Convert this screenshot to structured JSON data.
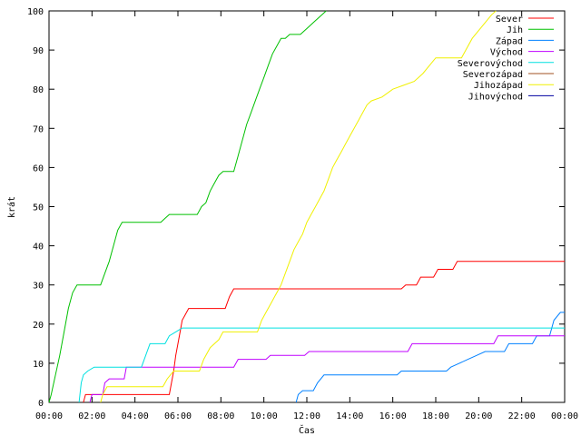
{
  "chart_data": {
    "type": "line",
    "xlabel": "Čas",
    "ylabel": "krát",
    "xlim": [
      0,
      24
    ],
    "ylim": [
      0,
      100
    ],
    "x_unit": "hours",
    "xticks": [
      {
        "value": 0,
        "label": "00:00"
      },
      {
        "value": 2,
        "label": "02:00"
      },
      {
        "value": 4,
        "label": "04:00"
      },
      {
        "value": 6,
        "label": "06:00"
      },
      {
        "value": 8,
        "label": "08:00"
      },
      {
        "value": 10,
        "label": "10:00"
      },
      {
        "value": 12,
        "label": "12:00"
      },
      {
        "value": 14,
        "label": "14:00"
      },
      {
        "value": 16,
        "label": "16:00"
      },
      {
        "value": 18,
        "label": "18:00"
      },
      {
        "value": 20,
        "label": "20:00"
      },
      {
        "value": 22,
        "label": "22:00"
      },
      {
        "value": 24,
        "label": "00:00"
      }
    ],
    "yticks": [
      0,
      10,
      20,
      30,
      40,
      50,
      60,
      70,
      80,
      90,
      100
    ],
    "grid": false,
    "legend_position": "top-right",
    "series": [
      {
        "name": "Sever",
        "color": "#ff0000",
        "points": [
          [
            1.6,
            0
          ],
          [
            1.7,
            2
          ],
          [
            5.6,
            2
          ],
          [
            5.7,
            5
          ],
          [
            5.8,
            8
          ],
          [
            5.9,
            12
          ],
          [
            6.0,
            15
          ],
          [
            6.1,
            18
          ],
          [
            6.2,
            21
          ],
          [
            6.3,
            22
          ],
          [
            6.5,
            24
          ],
          [
            8.2,
            24
          ],
          [
            8.4,
            27
          ],
          [
            8.6,
            29
          ],
          [
            16.4,
            29
          ],
          [
            16.6,
            30
          ],
          [
            17.1,
            30
          ],
          [
            17.3,
            32
          ],
          [
            17.9,
            32
          ],
          [
            18.1,
            34
          ],
          [
            18.8,
            34
          ],
          [
            19.0,
            36
          ],
          [
            24,
            36
          ]
        ]
      },
      {
        "name": "Jih",
        "color": "#00c000",
        "points": [
          [
            0,
            0
          ],
          [
            0.1,
            2
          ],
          [
            0.3,
            7
          ],
          [
            0.5,
            12
          ],
          [
            0.7,
            18
          ],
          [
            0.9,
            24
          ],
          [
            1.1,
            28
          ],
          [
            1.3,
            30
          ],
          [
            2.4,
            30
          ],
          [
            2.6,
            33
          ],
          [
            2.8,
            36
          ],
          [
            3.0,
            40
          ],
          [
            3.2,
            44
          ],
          [
            3.4,
            46
          ],
          [
            5.2,
            46
          ],
          [
            5.4,
            47
          ],
          [
            5.6,
            48
          ],
          [
            6.9,
            48
          ],
          [
            7.1,
            50
          ],
          [
            7.3,
            51
          ],
          [
            7.5,
            54
          ],
          [
            7.7,
            56
          ],
          [
            7.9,
            58
          ],
          [
            8.1,
            59
          ],
          [
            8.6,
            59
          ],
          [
            8.8,
            63
          ],
          [
            9.0,
            67
          ],
          [
            9.2,
            71
          ],
          [
            9.4,
            74
          ],
          [
            9.6,
            77
          ],
          [
            9.8,
            80
          ],
          [
            10.0,
            83
          ],
          [
            10.2,
            86
          ],
          [
            10.4,
            89
          ],
          [
            10.6,
            91
          ],
          [
            10.8,
            93
          ],
          [
            11.0,
            93
          ],
          [
            11.2,
            94
          ],
          [
            11.7,
            94
          ],
          [
            11.9,
            95
          ],
          [
            12.1,
            96
          ],
          [
            12.3,
            97
          ],
          [
            12.5,
            98
          ],
          [
            12.7,
            99
          ],
          [
            12.9,
            100
          ]
        ]
      },
      {
        "name": "Západ",
        "color": "#0080ff",
        "points": [
          [
            11.5,
            0
          ],
          [
            11.6,
            2
          ],
          [
            11.8,
            3
          ],
          [
            12.3,
            3
          ],
          [
            12.5,
            5
          ],
          [
            12.8,
            7
          ],
          [
            16.2,
            7
          ],
          [
            16.4,
            8
          ],
          [
            18.5,
            8
          ],
          [
            18.7,
            9
          ],
          [
            19.1,
            10
          ],
          [
            19.5,
            11
          ],
          [
            19.9,
            12
          ],
          [
            20.3,
            13
          ],
          [
            21.2,
            13
          ],
          [
            21.4,
            15
          ],
          [
            22.5,
            15
          ],
          [
            22.7,
            17
          ],
          [
            23.3,
            17
          ],
          [
            23.5,
            21
          ],
          [
            23.8,
            23
          ],
          [
            24,
            23
          ]
        ]
      },
      {
        "name": "Východ",
        "color": "#c000ff",
        "points": [
          [
            1.9,
            0
          ],
          [
            2.0,
            2
          ],
          [
            2.5,
            2
          ],
          [
            2.6,
            5
          ],
          [
            2.8,
            6
          ],
          [
            3.5,
            6
          ],
          [
            3.6,
            9
          ],
          [
            8.6,
            9
          ],
          [
            8.8,
            11
          ],
          [
            10.1,
            11
          ],
          [
            10.3,
            12
          ],
          [
            11.9,
            12
          ],
          [
            12.1,
            13
          ],
          [
            16.7,
            13
          ],
          [
            16.9,
            15
          ],
          [
            20.7,
            15
          ],
          [
            20.9,
            17
          ],
          [
            24,
            17
          ]
        ]
      },
      {
        "name": "Severovýchod",
        "color": "#00e0e0",
        "points": [
          [
            1.4,
            0
          ],
          [
            1.5,
            5
          ],
          [
            1.6,
            7
          ],
          [
            1.8,
            8
          ],
          [
            2.1,
            9
          ],
          [
            4.3,
            9
          ],
          [
            4.5,
            12
          ],
          [
            4.7,
            15
          ],
          [
            5.4,
            15
          ],
          [
            5.6,
            17
          ],
          [
            5.9,
            18
          ],
          [
            6.2,
            19
          ],
          [
            24,
            19
          ]
        ]
      },
      {
        "name": "Severozápad",
        "color": "#a05020",
        "points": []
      },
      {
        "name": "Jihozápad",
        "color": "#f0f000",
        "points": [
          [
            2.4,
            0
          ],
          [
            2.5,
            2
          ],
          [
            2.7,
            4
          ],
          [
            5.3,
            4
          ],
          [
            5.5,
            6
          ],
          [
            5.8,
            8
          ],
          [
            7.0,
            8
          ],
          [
            7.2,
            11
          ],
          [
            7.5,
            14
          ],
          [
            7.9,
            16
          ],
          [
            8.1,
            18
          ],
          [
            9.7,
            18
          ],
          [
            9.9,
            21
          ],
          [
            10.1,
            23
          ],
          [
            10.3,
            25
          ],
          [
            10.5,
            27
          ],
          [
            10.8,
            30
          ],
          [
            11.0,
            33
          ],
          [
            11.2,
            36
          ],
          [
            11.4,
            39
          ],
          [
            11.6,
            41
          ],
          [
            11.8,
            43
          ],
          [
            12.0,
            46
          ],
          [
            12.2,
            48
          ],
          [
            12.4,
            50
          ],
          [
            12.6,
            52
          ],
          [
            12.8,
            54
          ],
          [
            13.0,
            57
          ],
          [
            13.2,
            60
          ],
          [
            13.4,
            62
          ],
          [
            13.6,
            64
          ],
          [
            13.8,
            66
          ],
          [
            14.0,
            68
          ],
          [
            14.2,
            70
          ],
          [
            14.4,
            72
          ],
          [
            14.6,
            74
          ],
          [
            14.8,
            76
          ],
          [
            15.0,
            77
          ],
          [
            15.5,
            78
          ],
          [
            16.0,
            80
          ],
          [
            16.5,
            81
          ],
          [
            17.0,
            82
          ],
          [
            17.4,
            84
          ],
          [
            17.7,
            86
          ],
          [
            18.0,
            88
          ],
          [
            19.2,
            88
          ],
          [
            19.4,
            90
          ],
          [
            19.7,
            93
          ],
          [
            20.0,
            95
          ],
          [
            20.3,
            97
          ],
          [
            20.6,
            99
          ],
          [
            20.8,
            100
          ]
        ]
      },
      {
        "name": "Jihovýchod",
        "color": "#0000a0",
        "points": []
      }
    ]
  }
}
